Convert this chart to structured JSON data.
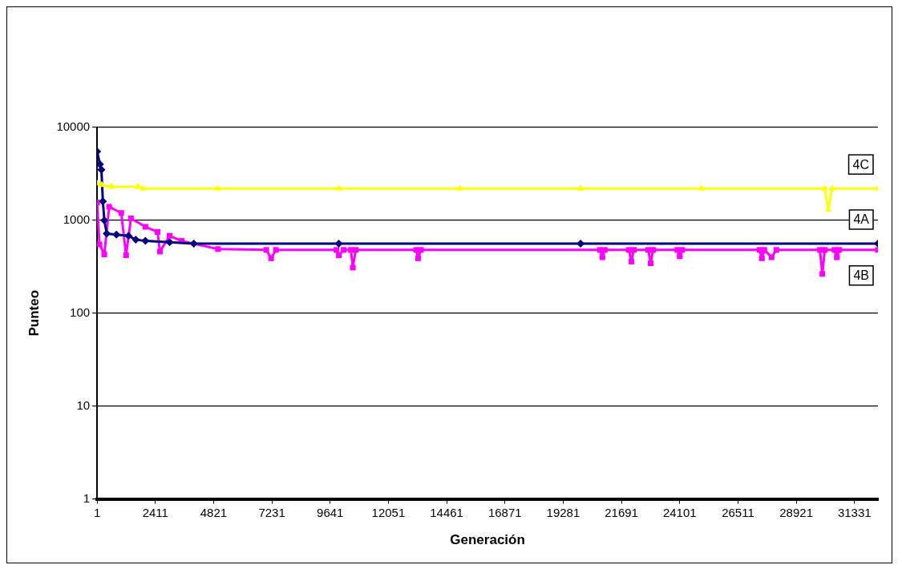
{
  "chart_data": {
    "type": "line",
    "xlabel": "Generación",
    "ylabel": "Punteo",
    "log": "y",
    "grid": "y",
    "legend": false,
    "line_style": "solid",
    "xlim": [
      1,
      32300
    ],
    "xticks": [
      1,
      2411,
      4821,
      7231,
      9641,
      12051,
      14461,
      16871,
      19281,
      21691,
      24101,
      26511,
      28921,
      31331
    ],
    "ylim": [
      1,
      10000
    ],
    "yticks": [
      1,
      10,
      100,
      1000,
      10000
    ],
    "series": [
      {
        "name": "4C",
        "color": "#ffff00",
        "marker": "triangle",
        "x": [
          1,
          200,
          600,
          1700,
          1900,
          5000,
          10000,
          15000,
          20000,
          25000,
          30100,
          30250,
          30400,
          32300
        ],
        "values": [
          2500,
          2400,
          2300,
          2300,
          2200,
          2200,
          2200,
          2200,
          2200,
          2200,
          2200,
          1300,
          2200,
          2200
        ]
      },
      {
        "name": "4A",
        "color": "#000080",
        "marker": "diamond",
        "x": [
          1,
          120,
          180,
          240,
          300,
          400,
          800,
          1300,
          1600,
          2000,
          3000,
          4000,
          10000,
          20000,
          32300
        ],
        "values": [
          5500,
          4000,
          3500,
          1600,
          1000,
          720,
          700,
          680,
          620,
          600,
          580,
          560,
          560,
          560,
          560
        ]
      },
      {
        "name": "4B",
        "color": "#ff00ff",
        "marker": "square",
        "x": [
          1,
          100,
          300,
          500,
          1000,
          1200,
          1400,
          2000,
          2500,
          2600,
          3000,
          3500,
          5000,
          7000,
          7200,
          7400,
          9900,
          10000,
          10200,
          10500,
          10580,
          10700,
          13200,
          13280,
          13400,
          20800,
          20900,
          21000,
          22000,
          22100,
          22200,
          22800,
          22900,
          23000,
          24000,
          24100,
          24200,
          27400,
          27500,
          27600,
          27900,
          28100,
          29900,
          30000,
          30100,
          30500,
          30600,
          30700,
          32300
        ],
        "values": [
          1550,
          550,
          430,
          1400,
          1200,
          420,
          1050,
          850,
          750,
          460,
          680,
          600,
          490,
          480,
          390,
          480,
          480,
          420,
          480,
          480,
          310,
          480,
          480,
          390,
          480,
          480,
          400,
          480,
          480,
          360,
          480,
          480,
          345,
          480,
          480,
          410,
          480,
          480,
          390,
          480,
          400,
          480,
          480,
          265,
          480,
          480,
          400,
          480,
          480
        ]
      }
    ]
  }
}
